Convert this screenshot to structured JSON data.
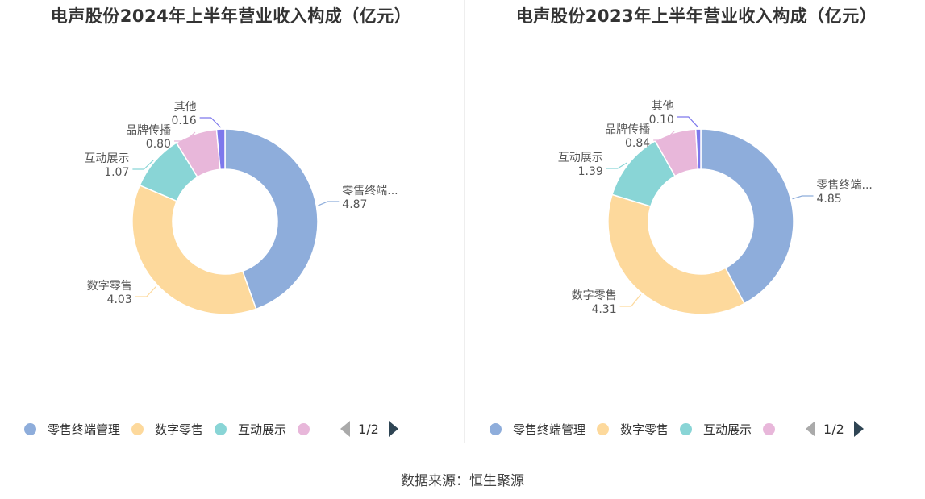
{
  "chart_data": [
    {
      "type": "pie",
      "title": "电声股份2024年上半年营业收入构成（亿元）",
      "slices": [
        {
          "name": "零售终端管理",
          "label": "零售终端...",
          "value": 4.87,
          "display": "4.87",
          "color": "#8eaddb"
        },
        {
          "name": "数字零售",
          "label": "数字零售",
          "value": 4.03,
          "display": "4.03",
          "color": "#fdd99c"
        },
        {
          "name": "互动展示",
          "label": "互动展示",
          "value": 1.07,
          "display": "1.07",
          "color": "#89d5d6"
        },
        {
          "name": "品牌传播",
          "label": "品牌传播",
          "value": 0.8,
          "display": "0.80",
          "color": "#e8b7da"
        },
        {
          "name": "其他",
          "label": "其他",
          "value": 0.16,
          "display": "0.16",
          "color": "#7d78ec"
        }
      ],
      "legend": {
        "items": [
          "零售终端管理",
          "数字零售",
          "互动展示",
          ""
        ],
        "page": "1/2"
      }
    },
    {
      "type": "pie",
      "title": "电声股份2023年上半年营业收入构成（亿元）",
      "slices": [
        {
          "name": "零售终端管理",
          "label": "零售终端...",
          "value": 4.85,
          "display": "4.85",
          "color": "#8eaddb"
        },
        {
          "name": "数字零售",
          "label": "数字零售",
          "value": 4.31,
          "display": "4.31",
          "color": "#fdd99c"
        },
        {
          "name": "互动展示",
          "label": "互动展示",
          "value": 1.39,
          "display": "1.39",
          "color": "#89d5d6"
        },
        {
          "name": "品牌传播",
          "label": "品牌传播",
          "value": 0.84,
          "display": "0.84",
          "color": "#e8b7da"
        },
        {
          "name": "其他",
          "label": "其他",
          "value": 0.1,
          "display": "0.10",
          "color": "#7d78ec"
        }
      ],
      "legend": {
        "items": [
          "零售终端管理",
          "数字零售",
          "互动展示",
          ""
        ],
        "page": "1/2"
      }
    }
  ],
  "source": "数据来源：恒生聚源"
}
